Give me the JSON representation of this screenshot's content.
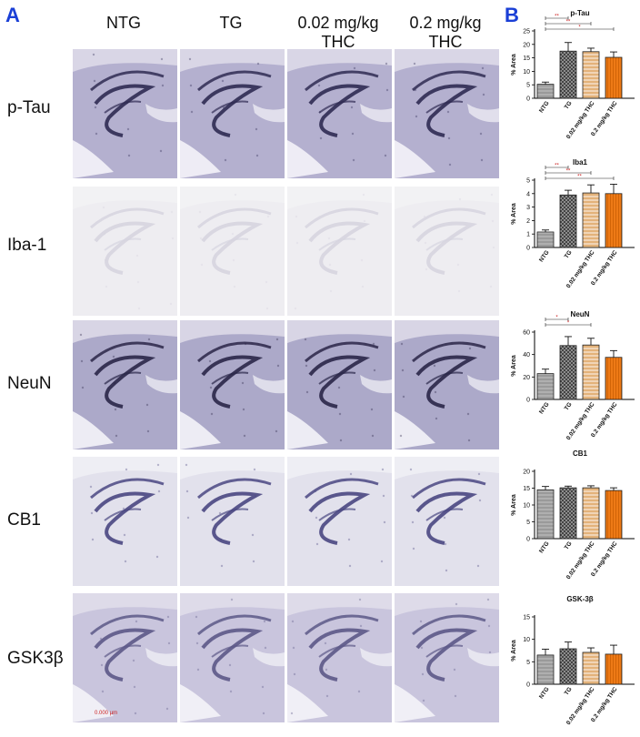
{
  "panels": {
    "a": "A",
    "b": "B"
  },
  "columns": [
    "NTG",
    "TG",
    "0.02 mg/kg\nTHC",
    "0.2 mg/kg\nTHC"
  ],
  "rows": [
    "p-Tau",
    "Iba-1",
    "NeuN",
    "CB1",
    "GSK3β"
  ],
  "scale_bar": "0.000 µm",
  "colors": {
    "panel_letter": "#1a3fd6",
    "sig": "#cc2222",
    "bars": [
      "#9a9a9a",
      "#3a3a3a",
      "#e3b27a",
      "#ee7a16"
    ]
  },
  "chart_data": [
    {
      "type": "bar",
      "title": "p-Tau",
      "ylabel": "% Area",
      "categories": [
        "NTG",
        "TG",
        "0.02 mg/kg THC",
        "0.2 mg/kg THC"
      ],
      "values": [
        5.2,
        17.5,
        17.3,
        15.2
      ],
      "errors": [
        0.8,
        3.2,
        1.3,
        2.0
      ],
      "ylim": [
        0,
        25
      ],
      "yticks": [
        "0",
        "5",
        "10",
        "15",
        "20",
        "25"
      ],
      "significance": [
        "**",
        "**",
        "*"
      ]
    },
    {
      "type": "bar",
      "title": "Iba1",
      "ylabel": "% Area",
      "categories": [
        "NTG",
        "TG",
        "0.02 mg/kg THC",
        "0.2 mg/kg THC"
      ],
      "values": [
        1.15,
        3.9,
        4.05,
        4.0
      ],
      "errors": [
        0.15,
        0.35,
        0.6,
        0.7
      ],
      "ylim": [
        0,
        5
      ],
      "yticks": [
        "0",
        "1",
        "2",
        "3",
        "4",
        "5"
      ],
      "significance": [
        "**",
        "**",
        "**"
      ]
    },
    {
      "type": "bar",
      "title": "NeuN",
      "ylabel": "% Area",
      "categories": [
        "NTG",
        "TG",
        "0.02 mg/kg THC",
        "0.2 mg/kg THC"
      ],
      "values": [
        23,
        48,
        48.5,
        37.5
      ],
      "errors": [
        4,
        8,
        6,
        6
      ],
      "ylim": [
        0,
        60
      ],
      "yticks": [
        "0",
        "20",
        "40",
        "60"
      ],
      "significance": [
        "*",
        "*"
      ]
    },
    {
      "type": "bar",
      "title": "CB1",
      "ylabel": "% Area",
      "categories": [
        "NTG",
        "TG",
        "0.02 mg/kg THC",
        "0.2 mg/kg THC"
      ],
      "values": [
        14.5,
        15.1,
        15.1,
        14.3
      ],
      "errors": [
        1.0,
        0.5,
        0.6,
        0.8
      ],
      "ylim": [
        0,
        20
      ],
      "yticks": [
        "0",
        "5",
        "10",
        "15",
        "20"
      ],
      "significance": []
    },
    {
      "type": "bar",
      "title": "GSK-3β",
      "ylabel": "% Area",
      "categories": [
        "NTG",
        "TG",
        "0.02 mg/kg THC",
        "0.2 mg/kg THC"
      ],
      "values": [
        6.5,
        7.9,
        7.1,
        6.7
      ],
      "errors": [
        1.3,
        1.5,
        1.0,
        2.0
      ],
      "ylim": [
        0,
        15
      ],
      "yticks": [
        "0",
        "5",
        "10",
        "15"
      ],
      "significance": []
    }
  ]
}
